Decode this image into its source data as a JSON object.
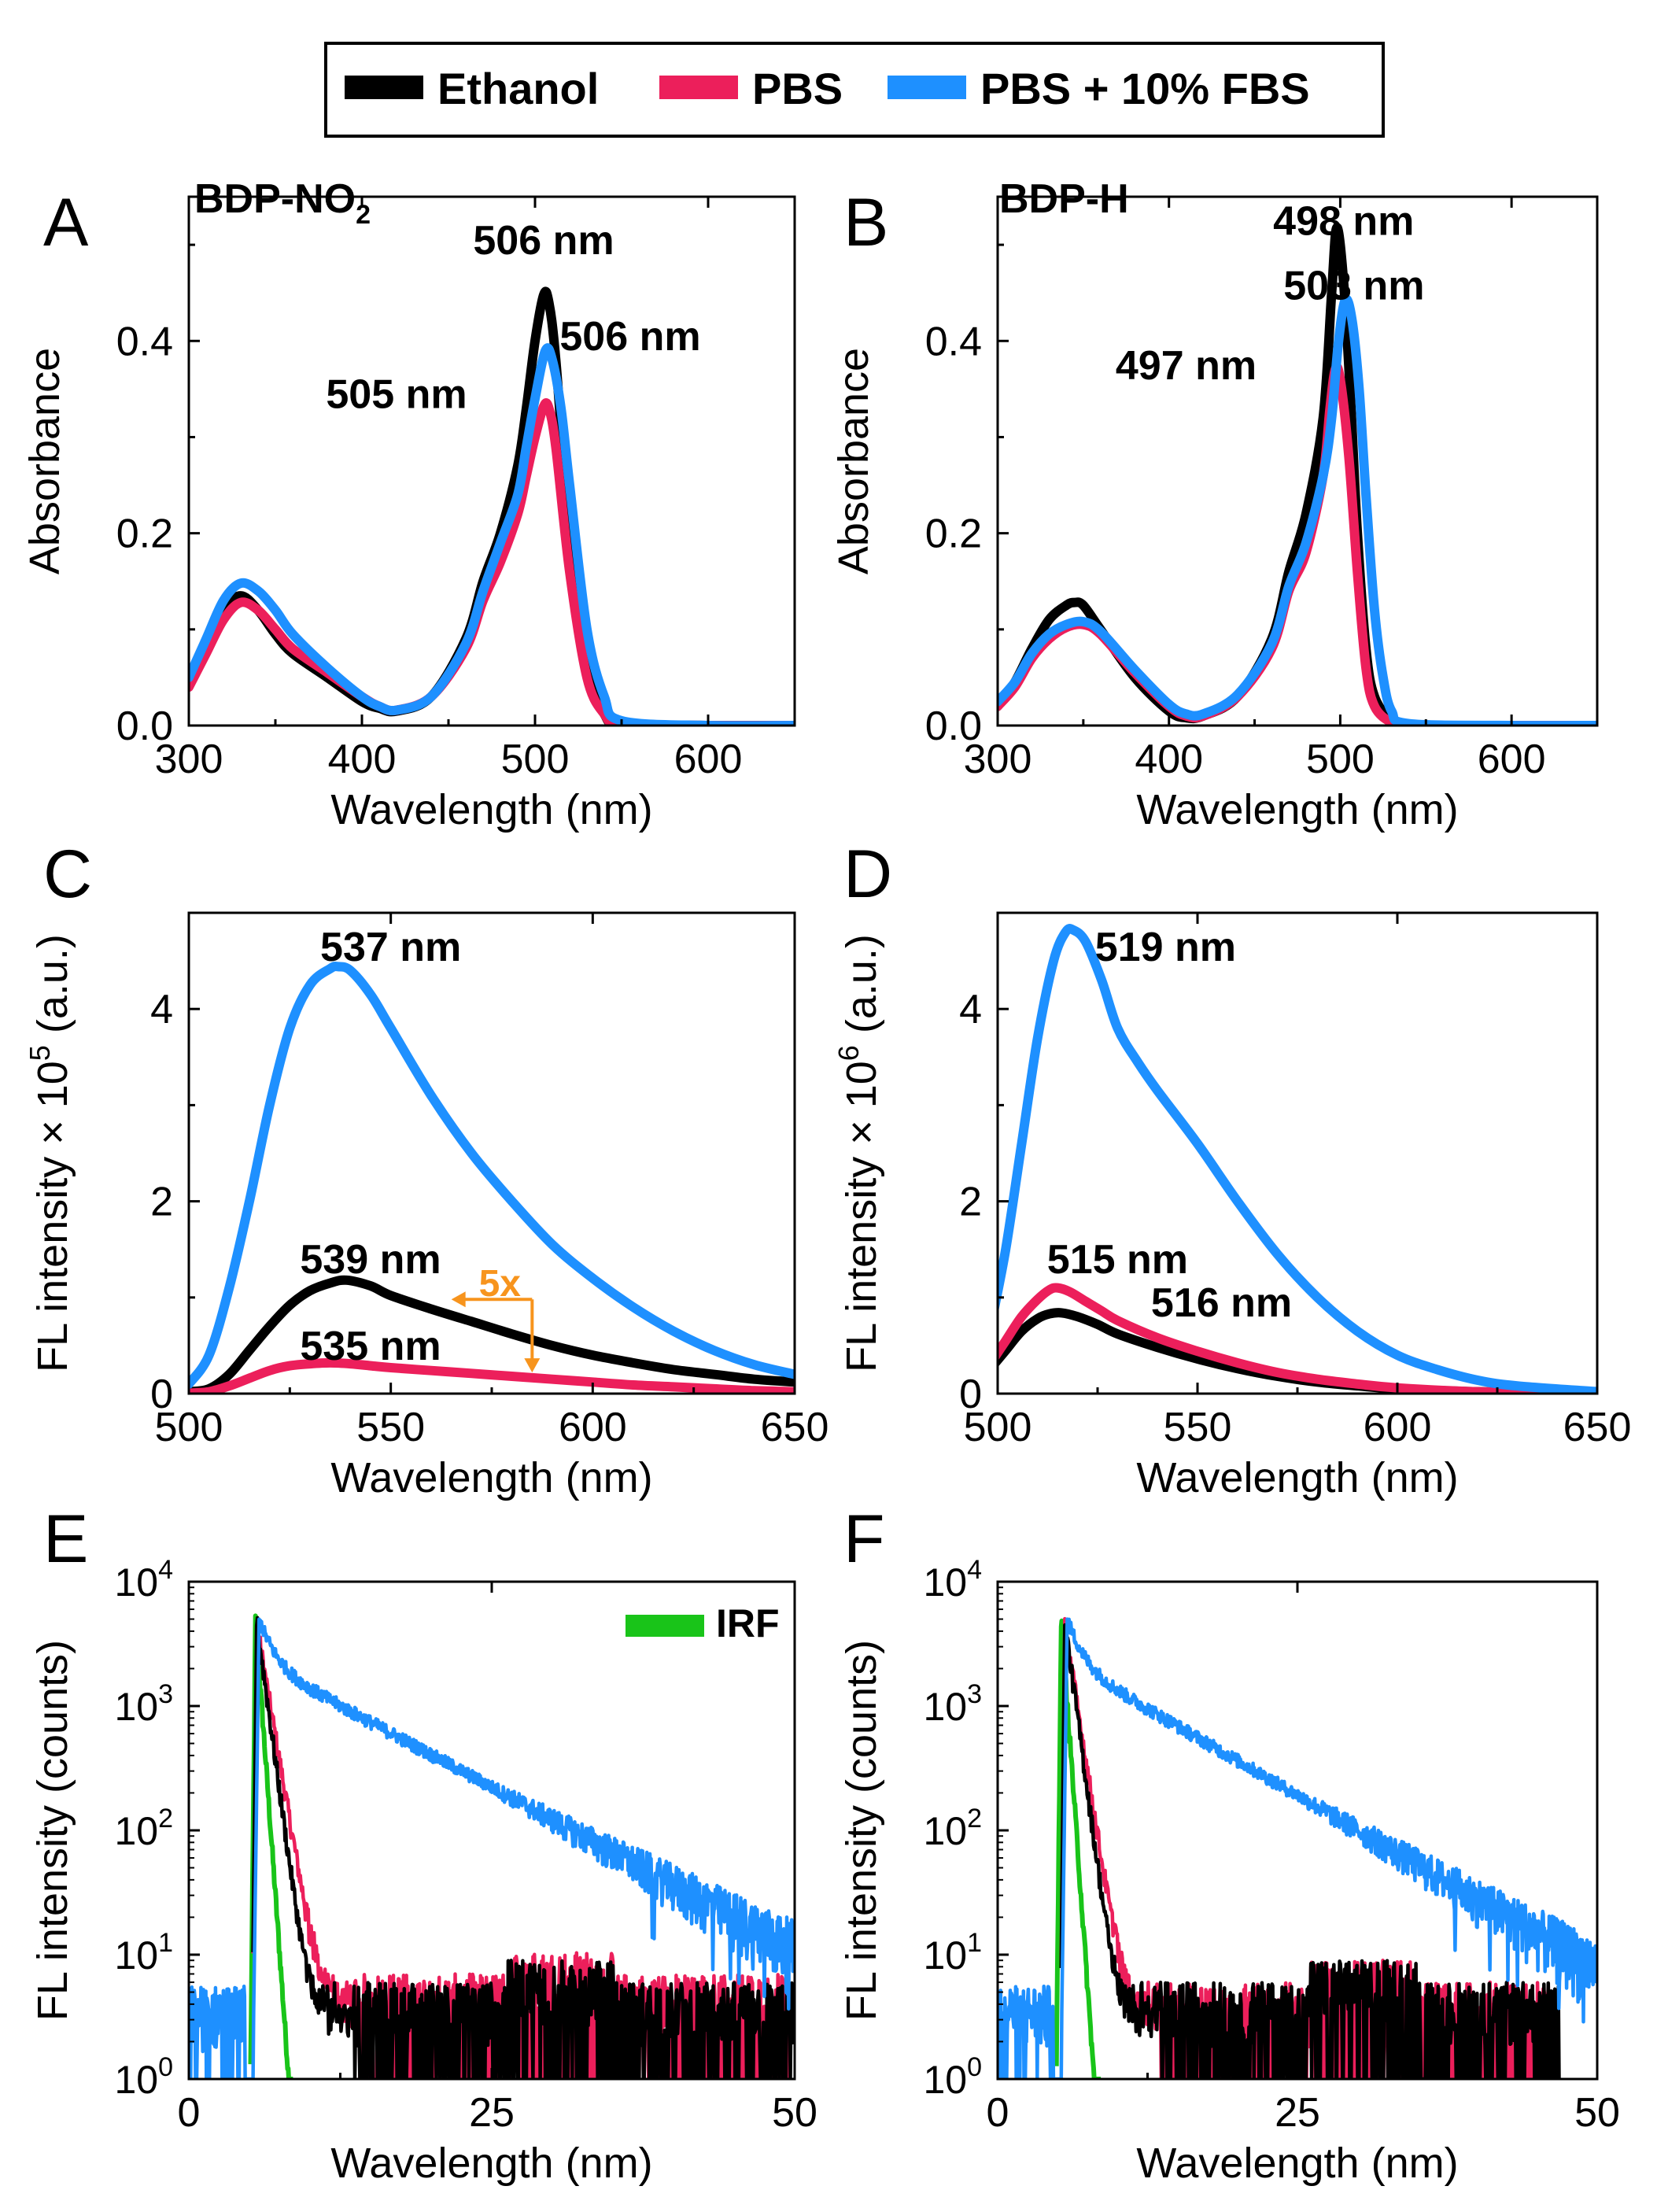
{
  "legend": {
    "entries": [
      {
        "name": "Ethanol",
        "color": "#000000"
      },
      {
        "name": "PBS",
        "color": "#ec1f5b"
      },
      {
        "name": "PBS + 10% FBS",
        "color": "#1e90ff"
      }
    ]
  },
  "colors": {
    "ethanol": "#000000",
    "pbs": "#ec1f5b",
    "fbs": "#1e90ff",
    "irf": "#19c419",
    "arrow": "#f7941d"
  },
  "chart_data": [
    {
      "panel": "A",
      "type": "line",
      "title": "BDP-NO2",
      "title_main": "BDP-NO",
      "title_sub": "2",
      "xlabel": "Wavelength (nm)",
      "ylabel": "Absorbance",
      "xlim": [
        300,
        650
      ],
      "ylim": [
        0,
        0.55
      ],
      "xticks": [
        300,
        400,
        500,
        600
      ],
      "yticks": [
        0.0,
        0.2,
        0.4
      ],
      "ytick_labels": [
        "0.0",
        "0.2",
        "0.4"
      ],
      "series": [
        {
          "name": "Ethanol",
          "x": [
            300,
            310,
            320,
            330,
            340,
            350,
            360,
            380,
            400,
            410,
            420,
            440,
            460,
            470,
            480,
            490,
            495,
            500,
            505,
            508,
            512,
            520,
            530,
            540,
            550,
            600,
            650
          ],
          "y": [
            0.045,
            0.08,
            0.12,
            0.135,
            0.12,
            0.095,
            0.075,
            0.05,
            0.025,
            0.018,
            0.015,
            0.03,
            0.09,
            0.15,
            0.2,
            0.27,
            0.33,
            0.4,
            0.448,
            0.44,
            0.38,
            0.2,
            0.06,
            0.012,
            0.002,
            0,
            0
          ]
        },
        {
          "name": "PBS",
          "x": [
            300,
            310,
            320,
            330,
            340,
            350,
            360,
            380,
            400,
            410,
            420,
            440,
            460,
            470,
            480,
            490,
            495,
            500,
            505,
            508,
            512,
            520,
            530,
            540,
            550,
            600,
            650
          ],
          "y": [
            0.04,
            0.075,
            0.11,
            0.128,
            0.12,
            0.1,
            0.08,
            0.055,
            0.03,
            0.02,
            0.016,
            0.03,
            0.08,
            0.13,
            0.17,
            0.22,
            0.26,
            0.3,
            0.332,
            0.33,
            0.29,
            0.16,
            0.05,
            0.012,
            0.002,
            0,
            0
          ]
        },
        {
          "name": "PBS + 10% FBS",
          "x": [
            300,
            310,
            320,
            330,
            340,
            350,
            360,
            380,
            400,
            410,
            420,
            440,
            460,
            470,
            480,
            490,
            495,
            500,
            506,
            510,
            515,
            520,
            530,
            540,
            550,
            600,
            650
          ],
          "y": [
            0.05,
            0.09,
            0.13,
            0.148,
            0.14,
            0.12,
            0.095,
            0.06,
            0.03,
            0.02,
            0.016,
            0.03,
            0.085,
            0.14,
            0.19,
            0.24,
            0.29,
            0.34,
            0.39,
            0.38,
            0.33,
            0.25,
            0.1,
            0.03,
            0.005,
            0,
            0
          ]
        }
      ],
      "annotations": [
        {
          "text": "506 nm",
          "x": 505,
          "y": 0.505
        },
        {
          "text": "506 nm",
          "x": 555,
          "y": 0.405
        },
        {
          "text": "505 nm",
          "x": 420,
          "y": 0.345
        }
      ]
    },
    {
      "panel": "B",
      "type": "line",
      "title": "BDP-H",
      "xlabel": "Wavelength (nm)",
      "ylabel": "Absorbance",
      "xlim": [
        300,
        650
      ],
      "ylim": [
        0,
        0.55
      ],
      "xticks": [
        300,
        400,
        500,
        600
      ],
      "yticks": [
        0.0,
        0.2,
        0.4
      ],
      "ytick_labels": [
        "0.0",
        "0.2",
        "0.4"
      ],
      "series": [
        {
          "name": "Ethanol",
          "x": [
            300,
            310,
            320,
            330,
            340,
            345,
            350,
            360,
            380,
            400,
            410,
            420,
            440,
            460,
            470,
            480,
            490,
            495,
            498,
            502,
            506,
            510,
            515,
            520,
            530,
            540,
            600,
            650
          ],
          "y": [
            0.02,
            0.045,
            0.08,
            0.11,
            0.125,
            0.128,
            0.125,
            0.1,
            0.05,
            0.015,
            0.008,
            0.01,
            0.03,
            0.09,
            0.16,
            0.22,
            0.32,
            0.45,
            0.518,
            0.46,
            0.34,
            0.2,
            0.08,
            0.03,
            0.005,
            0,
            0,
            0
          ]
        },
        {
          "name": "PBS",
          "x": [
            300,
            310,
            320,
            330,
            340,
            350,
            360,
            380,
            400,
            410,
            420,
            440,
            460,
            470,
            480,
            490,
            494,
            497,
            500,
            505,
            510,
            515,
            520,
            530,
            540,
            600,
            650
          ],
          "y": [
            0.02,
            0.04,
            0.07,
            0.09,
            0.102,
            0.105,
            0.095,
            0.055,
            0.02,
            0.01,
            0.01,
            0.03,
            0.08,
            0.14,
            0.18,
            0.26,
            0.33,
            0.37,
            0.36,
            0.28,
            0.16,
            0.06,
            0.02,
            0.003,
            0,
            0,
            0
          ]
        },
        {
          "name": "PBS + 10% FBS",
          "x": [
            300,
            310,
            320,
            330,
            340,
            350,
            360,
            380,
            400,
            410,
            420,
            440,
            460,
            470,
            480,
            490,
            495,
            499,
            503,
            507,
            511,
            515,
            520,
            525,
            530,
            540,
            600,
            650
          ],
          "y": [
            0.025,
            0.045,
            0.075,
            0.095,
            0.105,
            0.108,
            0.098,
            0.058,
            0.022,
            0.012,
            0.012,
            0.032,
            0.085,
            0.145,
            0.19,
            0.26,
            0.32,
            0.4,
            0.443,
            0.42,
            0.35,
            0.24,
            0.12,
            0.05,
            0.015,
            0.002,
            0,
            0
          ]
        }
      ],
      "annotations": [
        {
          "text": "498 nm",
          "x": 502,
          "y": 0.525
        },
        {
          "text": "503 nm",
          "x": 508,
          "y": 0.458
        },
        {
          "text": "497 nm",
          "x": 410,
          "y": 0.375
        }
      ]
    },
    {
      "panel": "C",
      "type": "line",
      "xlabel": "Wavelength (nm)",
      "ylabel": "FL intensity × 10^5 (a.u.)",
      "ylabel_main": "FL intensity × 10",
      "ylabel_exp": "5",
      "ylabel_tail": " (a.u.)",
      "xlim": [
        500,
        650
      ],
      "ylim": [
        0,
        5
      ],
      "xticks": [
        500,
        550,
        600,
        650
      ],
      "yticks": [
        0,
        2,
        4
      ],
      "ytick_labels": [
        "0",
        "2",
        "4"
      ],
      "series": [
        {
          "name": "Ethanol",
          "x": [
            500,
            505,
            510,
            515,
            520,
            525,
            530,
            535,
            539,
            545,
            550,
            560,
            570,
            580,
            590,
            600,
            610,
            620,
            630,
            640,
            650
          ],
          "y": [
            0.02,
            0.05,
            0.2,
            0.45,
            0.7,
            0.92,
            1.07,
            1.15,
            1.18,
            1.12,
            1.02,
            0.88,
            0.75,
            0.62,
            0.5,
            0.4,
            0.32,
            0.25,
            0.2,
            0.15,
            0.12
          ]
        },
        {
          "name": "PBS",
          "x": [
            500,
            505,
            510,
            515,
            520,
            525,
            530,
            535,
            540,
            545,
            550,
            560,
            570,
            580,
            590,
            600,
            610,
            620,
            630,
            640,
            650
          ],
          "y": [
            0.005,
            0.02,
            0.08,
            0.16,
            0.24,
            0.29,
            0.31,
            0.32,
            0.31,
            0.29,
            0.27,
            0.24,
            0.21,
            0.18,
            0.15,
            0.12,
            0.09,
            0.07,
            0.05,
            0.03,
            0.02
          ]
        },
        {
          "name": "PBS + 10% FBS",
          "x": [
            500,
            505,
            510,
            515,
            520,
            525,
            530,
            535,
            537,
            540,
            545,
            550,
            560,
            570,
            580,
            590,
            600,
            610,
            620,
            630,
            640,
            650
          ],
          "y": [
            0.1,
            0.4,
            1.1,
            2.0,
            3.0,
            3.8,
            4.25,
            4.42,
            4.44,
            4.4,
            4.15,
            3.8,
            3.1,
            2.5,
            2.0,
            1.55,
            1.2,
            0.9,
            0.65,
            0.45,
            0.3,
            0.2
          ]
        }
      ],
      "annotations": [
        {
          "text": "537 nm",
          "x": 550,
          "y": 4.65
        },
        {
          "text": "539 nm",
          "x": 545,
          "y": 1.4
        },
        {
          "text": "535 nm",
          "x": 545,
          "y": 0.5
        },
        {
          "text": "5x",
          "x": 577,
          "y": 1.16
        }
      ]
    },
    {
      "panel": "D",
      "type": "line",
      "xlabel": "Wavelength (nm)",
      "ylabel": "FL intensity × 10^6 (a.u.)",
      "ylabel_main": "FL intensity × 10",
      "ylabel_exp": "6",
      "ylabel_tail": " (a.u.)",
      "xlim": [
        500,
        650
      ],
      "ylim": [
        0,
        5
      ],
      "xticks": [
        500,
        550,
        600,
        650
      ],
      "yticks": [
        0,
        2,
        4
      ],
      "ytick_labels": [
        "0",
        "2",
        "4"
      ],
      "series": [
        {
          "name": "Ethanol",
          "x": [
            498,
            502,
            506,
            510,
            513,
            516,
            520,
            525,
            530,
            540,
            550,
            560,
            570,
            580,
            590,
            600,
            620,
            650
          ],
          "y": [
            0.25,
            0.45,
            0.65,
            0.78,
            0.83,
            0.84,
            0.8,
            0.72,
            0.62,
            0.48,
            0.36,
            0.26,
            0.18,
            0.12,
            0.08,
            0.05,
            0.02,
            0.005
          ]
        },
        {
          "name": "PBS",
          "x": [
            498,
            502,
            506,
            510,
            513,
            515,
            518,
            522,
            526,
            530,
            540,
            550,
            560,
            570,
            580,
            590,
            600,
            620,
            650
          ],
          "y": [
            0.3,
            0.55,
            0.8,
            0.98,
            1.08,
            1.1,
            1.06,
            0.96,
            0.86,
            0.76,
            0.58,
            0.44,
            0.32,
            0.22,
            0.15,
            0.1,
            0.06,
            0.02,
            0.005
          ]
        },
        {
          "name": "PBS + 10% FBS",
          "x": [
            498,
            502,
            506,
            510,
            514,
            517,
            519,
            522,
            526,
            530,
            535,
            540,
            550,
            560,
            570,
            580,
            590,
            600,
            610,
            620,
            630,
            650
          ],
          "y": [
            0.65,
            1.5,
            2.6,
            3.7,
            4.5,
            4.8,
            4.82,
            4.7,
            4.3,
            3.8,
            3.45,
            3.15,
            2.6,
            2.0,
            1.45,
            1.0,
            0.65,
            0.4,
            0.25,
            0.14,
            0.08,
            0.02
          ]
        }
      ],
      "annotations": [
        {
          "text": "519 nm",
          "x": 542,
          "y": 4.65
        },
        {
          "text": "515 nm",
          "x": 530,
          "y": 1.4
        },
        {
          "text": "516 nm",
          "x": 556,
          "y": 0.95
        }
      ]
    },
    {
      "panel": "E",
      "type": "line",
      "yscale": "log",
      "xlabel": "Wavelength (nm)",
      "ylabel": "FL intensity (counts)",
      "xlim": [
        0,
        50
      ],
      "ylim": [
        1,
        10000
      ],
      "xticks": [
        0,
        25,
        50
      ],
      "yticks": [
        1,
        10,
        100,
        1000,
        10000
      ],
      "ytick_labels": [
        "10^0",
        "10^1",
        "10^2",
        "10^3",
        "10^4"
      ],
      "legend_extra": "IRF",
      "series": [
        {
          "name": "IRF",
          "model": "irf",
          "peak_x": 5.5,
          "peak_y": 5000,
          "end_x": 8.6
        },
        {
          "name": "PBS",
          "model": "fast",
          "peak_x": 5.6,
          "peak_y": 4500,
          "decay": 0.75,
          "floor": 3.5,
          "end_x": 49.5
        },
        {
          "name": "Ethanol",
          "model": "fast",
          "peak_x": 5.6,
          "peak_y": 4800,
          "decay": 0.6,
          "floor": 3,
          "end_x": 50
        },
        {
          "name": "PBS + 10% FBS",
          "model": "slow",
          "peak_x": 5.8,
          "peak_y": 5000,
          "tau": 8.3,
          "floor": 0.6,
          "end_x": 50,
          "pre_level": 4
        }
      ]
    },
    {
      "panel": "F",
      "type": "line",
      "yscale": "log",
      "xlabel": "Wavelength (nm)",
      "ylabel": "FL intensity (counts)",
      "xlim": [
        0,
        50
      ],
      "ylim": [
        1,
        10000
      ],
      "xticks": [
        0,
        25,
        50
      ],
      "yticks": [
        1,
        10,
        100,
        1000,
        10000
      ],
      "ytick_labels": [
        "10^0",
        "10^1",
        "10^2",
        "10^3",
        "10^4"
      ],
      "series": [
        {
          "name": "IRF",
          "model": "irf",
          "peak_x": 5.3,
          "peak_y": 5000,
          "end_x": 8.6
        },
        {
          "name": "PBS",
          "model": "fast",
          "peak_x": 5.6,
          "peak_y": 4500,
          "decay": 0.7,
          "floor": 3,
          "end_x": 46.5
        },
        {
          "name": "Ethanol",
          "model": "fast",
          "peak_x": 5.6,
          "peak_y": 4800,
          "decay": 0.6,
          "floor": 3,
          "end_x": 47
        },
        {
          "name": "PBS + 10% FBS",
          "model": "slow",
          "peak_x": 5.8,
          "peak_y": 5000,
          "tau": 7.8,
          "floor": 0.6,
          "end_x": 50,
          "pre_level": 4
        }
      ]
    }
  ]
}
